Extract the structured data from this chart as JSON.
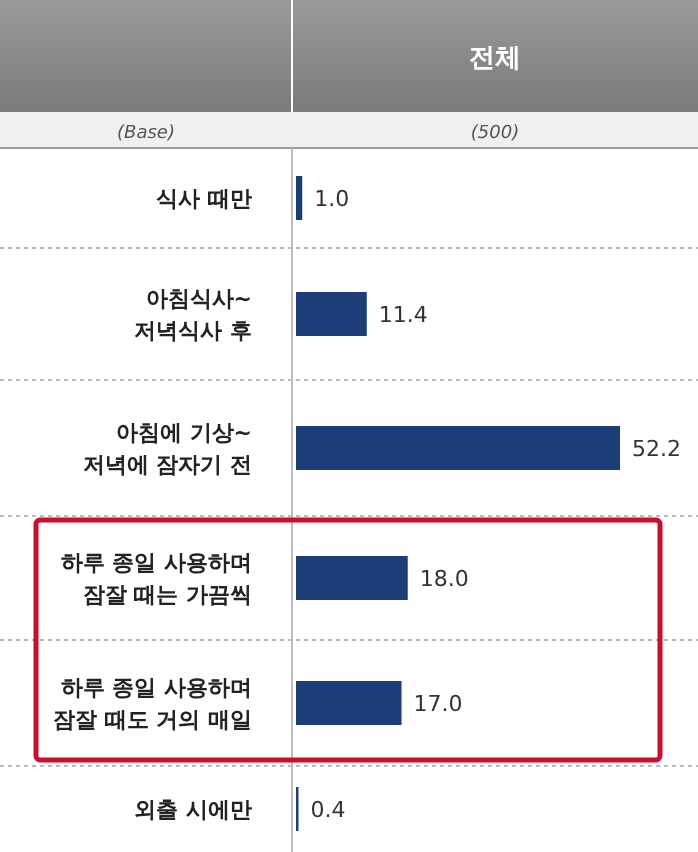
{
  "chart_data": {
    "type": "bar",
    "orientation": "horizontal",
    "title": "전체",
    "annotations": [
      "(Base)",
      "(500)"
    ],
    "categories": [
      "식사 때만",
      "아침식사~\n저녁식사 후",
      "아침에 기상~\n저녁에 잠자기 전",
      "하루 종일 사용하며\n잠잘 때는 가끔씩",
      "하루 종일 사용하며\n잠잘 때도 거의 매일",
      "외출 시에만"
    ],
    "values": [
      1.0,
      11.4,
      52.2,
      18.0,
      17.0,
      0.4
    ],
    "value_labels": [
      "1.0",
      "11.4",
      "52.2",
      "18.0",
      "17.0",
      "0.4"
    ],
    "color": "#1c3d78"
  }
}
